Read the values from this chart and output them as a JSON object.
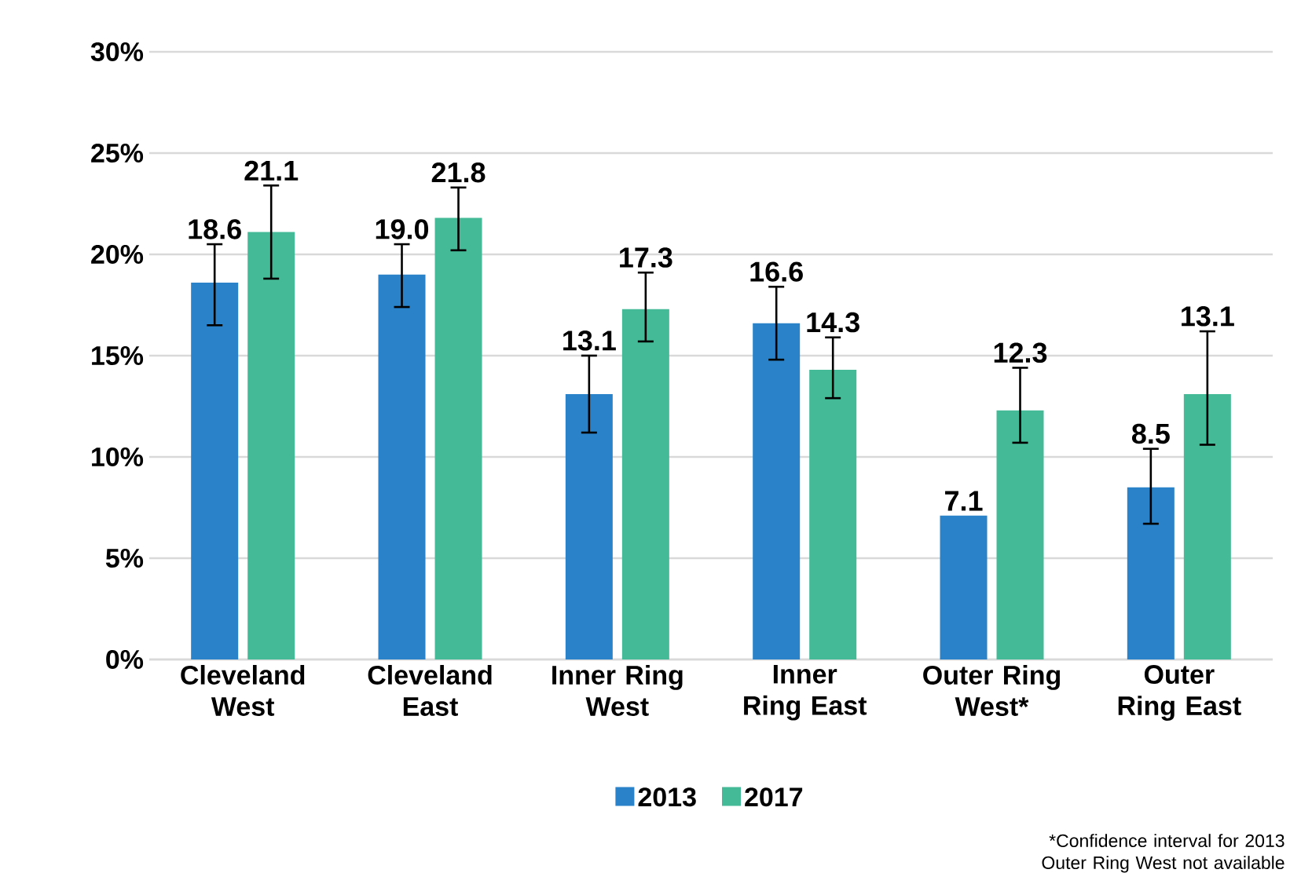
{
  "chart_data": {
    "type": "bar",
    "categories": [
      "Cleveland West",
      "Cleveland East",
      "Inner Ring West",
      "Inner Ring East",
      "Outer Ring West*",
      "Outer Ring East"
    ],
    "series": [
      {
        "name": "2013",
        "color": "#2a82c8",
        "values": [
          18.6,
          19.0,
          13.1,
          16.6,
          7.1,
          8.5
        ],
        "value_labels": [
          "18.6",
          "19.0",
          "13.1",
          "16.6",
          "7.1",
          "8.5"
        ],
        "errors": [
          [
            16.5,
            20.5
          ],
          [
            17.4,
            20.5
          ],
          [
            11.2,
            15.0
          ],
          [
            14.8,
            18.4
          ],
          null,
          [
            6.7,
            10.4
          ]
        ]
      },
      {
        "name": "2017",
        "color": "#44bb96",
        "values": [
          21.1,
          21.8,
          17.3,
          14.3,
          12.3,
          13.1
        ],
        "value_labels": [
          "21.1",
          "21.8",
          "17.3",
          "14.3",
          "12.3",
          "13.1"
        ],
        "errors": [
          [
            18.8,
            23.4
          ],
          [
            20.2,
            23.3
          ],
          [
            15.7,
            19.1
          ],
          [
            12.9,
            15.9
          ],
          [
            10.7,
            14.4
          ],
          [
            10.6,
            16.2
          ]
        ]
      }
    ],
    "ylim": [
      0,
      30
    ],
    "yticks": [
      {
        "value": 0,
        "label": "0%"
      },
      {
        "value": 5,
        "label": "5%"
      },
      {
        "value": 10,
        "label": "10%"
      },
      {
        "value": 15,
        "label": "15%"
      },
      {
        "value": 20,
        "label": "20%"
      },
      {
        "value": 25,
        "label": "25%"
      },
      {
        "value": 30,
        "label": "30%"
      }
    ],
    "grid": "y",
    "legend": "bottom",
    "annotations": [
      "*Confidence interval for 2013 Outer Ring West not available"
    ]
  }
}
